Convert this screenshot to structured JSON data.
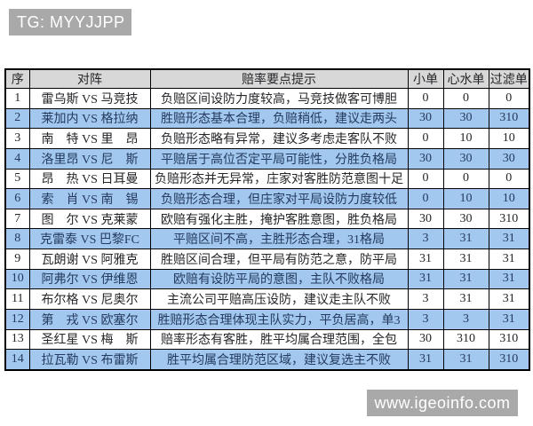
{
  "header": {
    "tg_label": "TG: MYYJJPP"
  },
  "watermark": {
    "text": "www.igeoinfo.com"
  },
  "colors": {
    "row_highlight": "#a3c8ef",
    "table_header_bg": "#d8d8d8",
    "badge_bg": "#a9a9a9",
    "border": "#000000",
    "highlight_text": "#243a5e",
    "body_text": "#26262a"
  },
  "table": {
    "columns": [
      "序",
      "对阵",
      "赔率要点提示",
      "小单",
      "心水单",
      "过滤单"
    ],
    "rows": [
      {
        "num": "1",
        "teams": "雷乌斯 VS 马竞技",
        "hint": "负赔区间设防力度较高，马竞技做客可博胆",
        "small": "0",
        "heart": "0",
        "filter": "0",
        "highlight": false
      },
      {
        "num": "2",
        "teams": "莱加内 VS 格拉纳",
        "hint": "胜赔形态基本合理，负赔稍低，建议走两头",
        "small": "30",
        "heart": "30",
        "filter": "310",
        "highlight": true
      },
      {
        "num": "3",
        "teams": "南　特 VS 里　昂",
        "hint": "负赔形态略有异常，建议多考虑走客队不败",
        "small": "0",
        "heart": "10",
        "filter": "10",
        "highlight": false
      },
      {
        "num": "4",
        "teams": "洛里昂 VS 尼　斯",
        "hint": "平赔居于高位否定平局可能性，分胜负格局",
        "small": "30",
        "heart": "30",
        "filter": "30",
        "highlight": true
      },
      {
        "num": "5",
        "teams": "昂　热 VS 日耳曼",
        "hint": "负赔形态并无异常，庄家对客胜防范意图十足",
        "small": "0",
        "heart": "0",
        "filter": "0",
        "highlight": false
      },
      {
        "num": "6",
        "teams": "索　肖 VS 南　锡",
        "hint": "负赔形态合理，但庄家对平局设防力度较低",
        "small": "0",
        "heart": "10",
        "filter": "10",
        "highlight": true
      },
      {
        "num": "7",
        "teams": "图　尔 VS 克莱蒙",
        "hint": "欧赔有强化主胜，掩护客胜意图，胜负格局",
        "small": "30",
        "heart": "30",
        "filter": "310",
        "highlight": false
      },
      {
        "num": "8",
        "teams": "克雷泰 VS 巴黎FC",
        "hint": "平赔区间不高，主胜形态合理，31格局",
        "small": "3",
        "heart": "31",
        "filter": "31",
        "highlight": true
      },
      {
        "num": "9",
        "teams": "瓦朗谢 VS 阿雅克",
        "hint": "胜赔区间合理，但平局有防范之意，防平局",
        "small": "31",
        "heart": "31",
        "filter": "31",
        "highlight": false
      },
      {
        "num": "10",
        "teams": "阿弗尔 VS 伊维恩",
        "hint": "欧赔有设防平局的意图，主队不败格局",
        "small": "31",
        "heart": "31",
        "filter": "31",
        "highlight": true
      },
      {
        "num": "11",
        "teams": "布尔格 VS 尼奥尔",
        "hint": "主流公司平赔高压设防，建议走主队不败",
        "small": "3",
        "heart": "31",
        "filter": "31",
        "highlight": false
      },
      {
        "num": "12",
        "teams": "第　戎 VS 欧塞尔",
        "hint": "胜赔形态合理体现主队实力，平负居高，单3",
        "small": "3",
        "heart": "3",
        "filter": "31",
        "highlight": true
      },
      {
        "num": "13",
        "teams": "圣红星 VS 梅　斯",
        "hint": "赔率形态有客胜，胜平均属合理范围，全包",
        "small": "30",
        "heart": "310",
        "filter": "310",
        "highlight": false
      },
      {
        "num": "14",
        "teams": "拉瓦勒 VS 布雷斯",
        "hint": "胜平均属合理防范区域，建议复选主不败",
        "small": "31",
        "heart": "31",
        "filter": "310",
        "highlight": true
      }
    ]
  }
}
